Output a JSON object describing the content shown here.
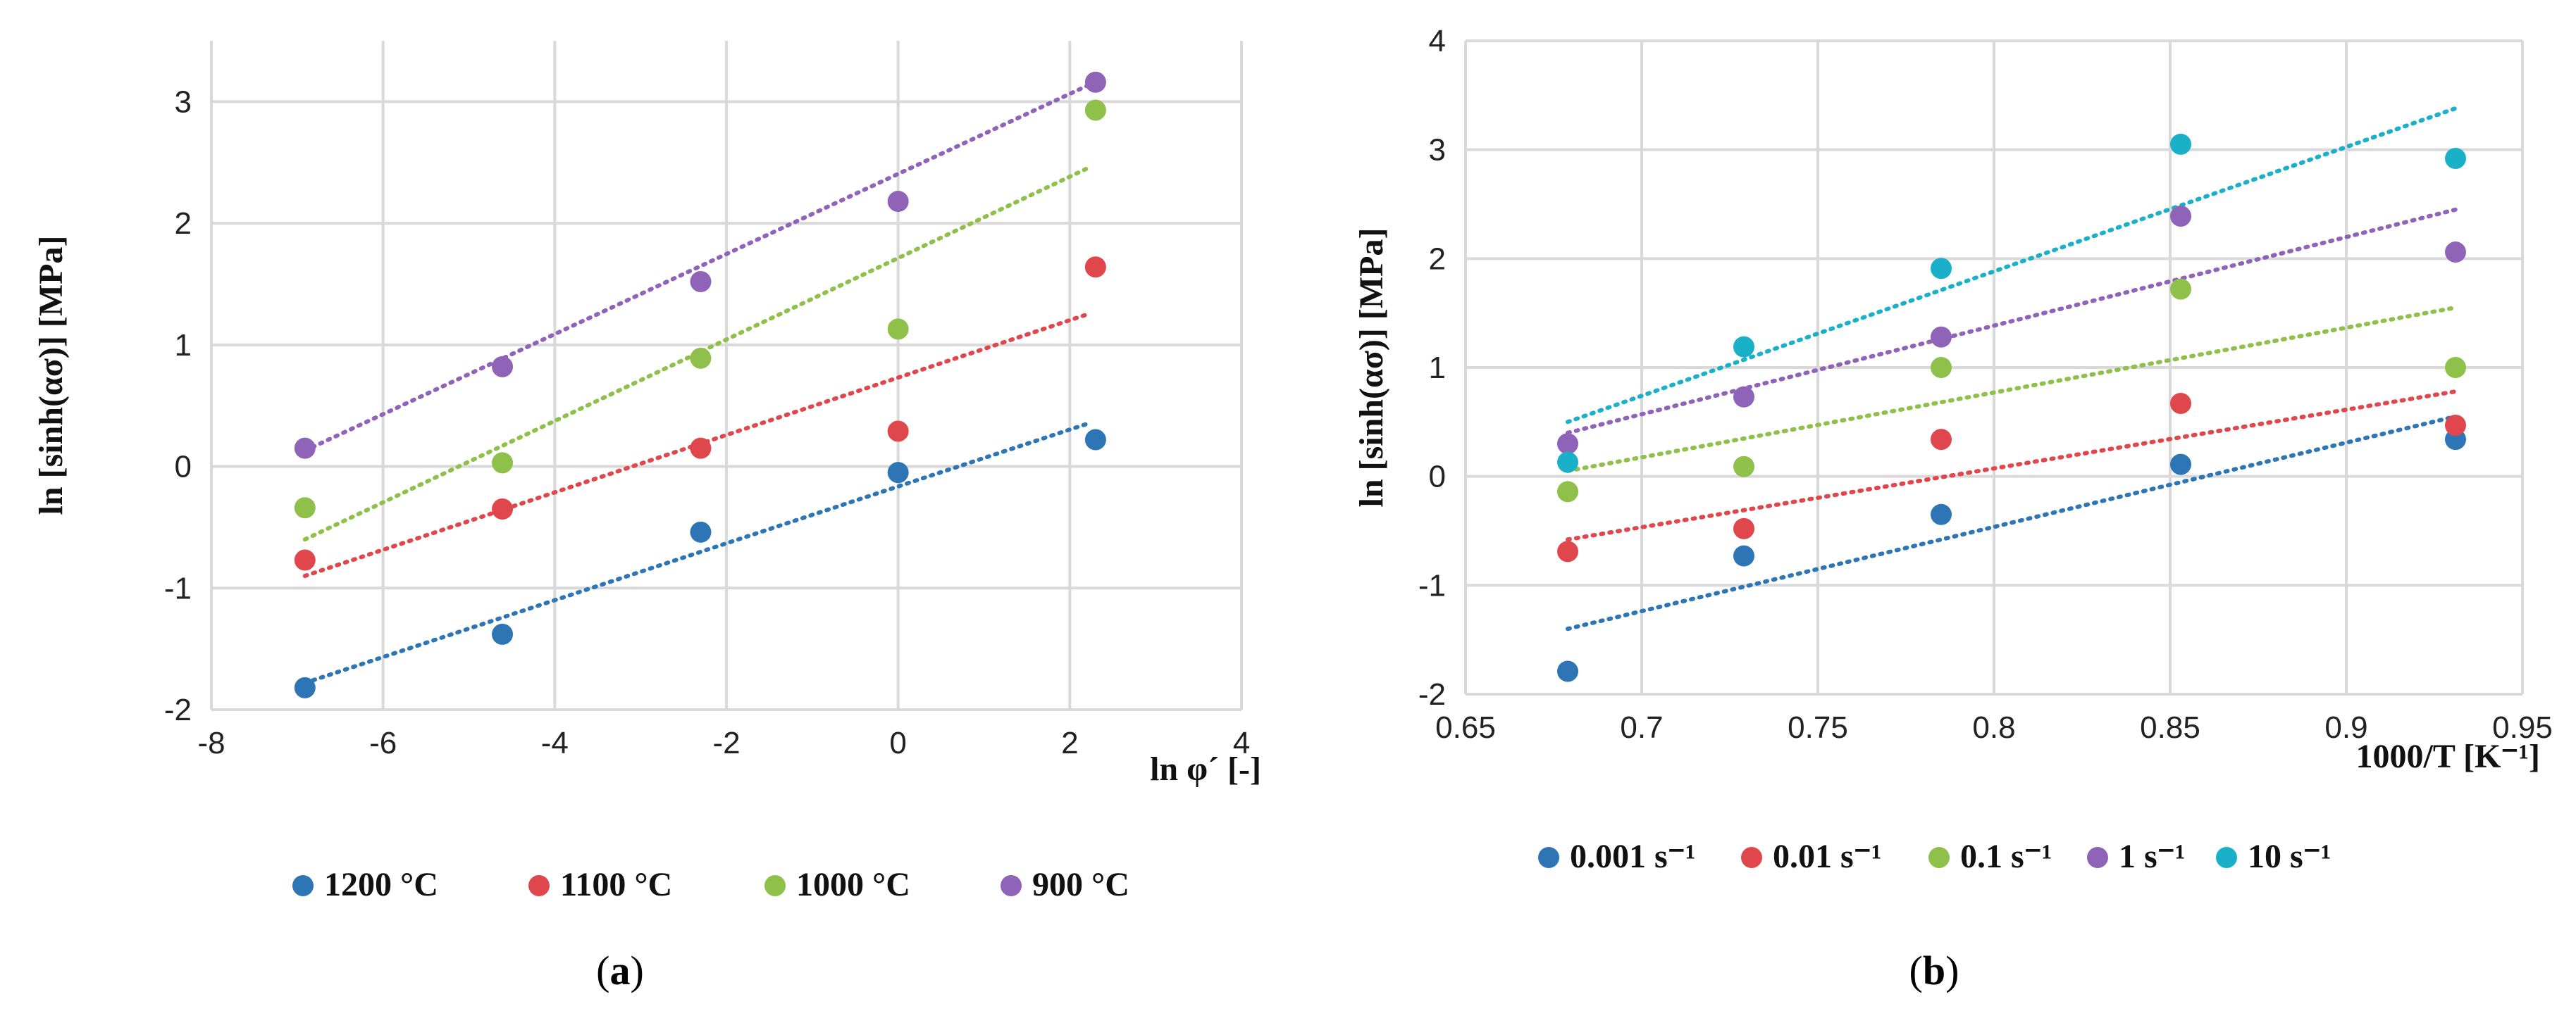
{
  "chart_data": [
    {
      "type": "scatter",
      "panel_label": "(a)",
      "caption_open": "(",
      "caption_letter": "a",
      "caption_close": ")",
      "ylabel": "ln [sinh(ασ)] [MPa]",
      "xlabel": "ln φ´ [-]",
      "xlim": [
        -8,
        4
      ],
      "ylim": [
        -2,
        3.5
      ],
      "xticks": [
        -8,
        -6,
        -4,
        -2,
        0,
        2,
        4
      ],
      "yticks": [
        -2,
        -1,
        0,
        1,
        2,
        3
      ],
      "grid": true,
      "legend_position": "bottom",
      "series": [
        {
          "name": "1200 °C",
          "color": "#2e75b6",
          "x": [
            -6.91,
            -4.61,
            -2.3,
            0,
            2.3
          ],
          "y": [
            -1.82,
            -1.38,
            -0.54,
            -0.05,
            0.22
          ],
          "trend": [
            [
              -6.91,
              -1.78
            ],
            [
              2.2,
              0.35
            ]
          ]
        },
        {
          "name": "1100 °C",
          "color": "#e0474c",
          "x": [
            -6.91,
            -4.61,
            -2.3,
            0,
            2.3
          ],
          "y": [
            -0.77,
            -0.35,
            0.15,
            0.29,
            1.64
          ],
          "trend": [
            [
              -6.91,
              -0.9
            ],
            [
              2.2,
              1.25
            ]
          ]
        },
        {
          "name": "1000 °C",
          "color": "#8fc04a",
          "x": [
            -6.91,
            -4.61,
            -2.3,
            0,
            2.3
          ],
          "y": [
            -0.34,
            0.03,
            0.89,
            1.13,
            2.93
          ],
          "trend": [
            [
              -6.91,
              -0.6
            ],
            [
              2.2,
              2.45
            ]
          ]
        },
        {
          "name": "900 °C",
          "color": "#8e63b8",
          "x": [
            -6.91,
            -4.61,
            -2.3,
            0,
            2.3
          ],
          "y": [
            0.15,
            0.82,
            1.52,
            2.18,
            3.16
          ],
          "trend": [
            [
              -6.91,
              0.13
            ],
            [
              2.2,
              3.13
            ]
          ]
        }
      ]
    },
    {
      "type": "scatter",
      "panel_label": "(b)",
      "caption_open": "(",
      "caption_letter": "b",
      "caption_close": ")",
      "ylabel": "ln [sinh(ασ)] [MPa]",
      "xlabel": "1000/T [K⁻¹]",
      "xlim": [
        0.65,
        0.95
      ],
      "ylim": [
        -2,
        4
      ],
      "xticks": [
        0.65,
        0.7,
        0.75,
        0.8,
        0.85,
        0.9,
        0.95
      ],
      "xtick_labels": [
        "0.65",
        "0.7",
        "0.75",
        "0.8",
        "0.85",
        "0.9",
        "0.95"
      ],
      "yticks": [
        -2,
        -1,
        0,
        1,
        2,
        3,
        4
      ],
      "grid": true,
      "legend_position": "bottom",
      "series": [
        {
          "name": "0.001 s⁻¹",
          "color": "#2e75b6",
          "x": [
            0.679,
            0.729,
            0.785,
            0.853,
            0.931
          ],
          "y": [
            -1.79,
            -0.73,
            -0.35,
            0.11,
            0.34
          ],
          "trend": [
            [
              0.679,
              -1.4
            ],
            [
              0.931,
              0.55
            ]
          ]
        },
        {
          "name": "0.01 s⁻¹",
          "color": "#e0474c",
          "x": [
            0.679,
            0.729,
            0.785,
            0.853,
            0.931
          ],
          "y": [
            -0.69,
            -0.48,
            0.34,
            0.67,
            0.47
          ],
          "trend": [
            [
              0.679,
              -0.58
            ],
            [
              0.931,
              0.78
            ]
          ]
        },
        {
          "name": "0.1 s⁻¹",
          "color": "#8fc04a",
          "x": [
            0.679,
            0.729,
            0.785,
            0.853,
            0.931
          ],
          "y": [
            -0.14,
            0.09,
            1.0,
            1.72,
            1.0
          ],
          "trend": [
            [
              0.679,
              0.05
            ],
            [
              0.931,
              1.55
            ]
          ]
        },
        {
          "name": "1 s⁻¹",
          "color": "#8e63b8",
          "x": [
            0.679,
            0.729,
            0.785,
            0.853,
            0.931
          ],
          "y": [
            0.3,
            0.73,
            1.28,
            2.39,
            2.06
          ],
          "trend": [
            [
              0.679,
              0.4
            ],
            [
              0.931,
              2.45
            ]
          ]
        },
        {
          "name": "10 s⁻¹",
          "color": "#1ab0c8",
          "x": [
            0.679,
            0.729,
            0.785,
            0.853,
            0.931
          ],
          "y": [
            0.13,
            1.19,
            1.91,
            3.05,
            2.92
          ],
          "trend": [
            [
              0.679,
              0.5
            ],
            [
              0.931,
              3.38
            ]
          ]
        }
      ]
    }
  ]
}
